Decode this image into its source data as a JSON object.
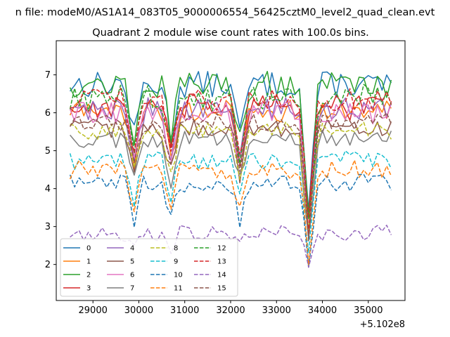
{
  "chart_data": {
    "type": "line",
    "suptitle": "n file: modeM0/AS1A14_083T05_9000006554_56425cztM0_level2_quad_clean.evt",
    "title": "Quadrant 2 module wise count rates with 100.0s bins.",
    "xlabel": "",
    "ylabel": "",
    "x_offset_label": "+5.102e8",
    "xlim": [
      28200,
      35800
    ],
    "ylim": [
      1.05,
      7.9
    ],
    "x_ticks": [
      29000,
      30000,
      31000,
      32000,
      33000,
      34000,
      35000
    ],
    "x_tick_labels": [
      "29000",
      "30000",
      "31000",
      "32000",
      "33000",
      "34000",
      "35000"
    ],
    "y_ticks": [
      2,
      3,
      4,
      5,
      6,
      7
    ],
    "y_tick_labels": [
      "2",
      "3",
      "4",
      "5",
      "6",
      "7"
    ],
    "x_start": 28500,
    "x_step": 100,
    "dip_centers": [
      29900,
      30700,
      32200,
      33700
    ],
    "legend_position": "lower-left",
    "series": [
      {
        "name": "0",
        "color": "#1f77b4",
        "dash": "solid",
        "base": 6.75,
        "noise": 0.35,
        "dip": 1.4
      },
      {
        "name": "1",
        "color": "#ff7f0e",
        "dash": "solid",
        "base": 6.05,
        "noise": 0.3,
        "dip": 1.3
      },
      {
        "name": "2",
        "color": "#2ca02c",
        "dash": "solid",
        "base": 6.75,
        "noise": 0.35,
        "dip": 1.4
      },
      {
        "name": "3",
        "color": "#d62728",
        "dash": "solid",
        "base": 6.15,
        "noise": 0.35,
        "dip": 1.3
      },
      {
        "name": "4",
        "color": "#9467bd",
        "dash": "solid",
        "base": 6.1,
        "noise": 0.3,
        "dip": 1.3
      },
      {
        "name": "5",
        "color": "#8c564b",
        "dash": "solid",
        "base": 5.6,
        "noise": 0.25,
        "dip": 1.2
      },
      {
        "name": "6",
        "color": "#e377c2",
        "dash": "solid",
        "base": 6.0,
        "noise": 0.3,
        "dip": 1.3
      },
      {
        "name": "7",
        "color": "#7f7f7f",
        "dash": "solid",
        "base": 5.3,
        "noise": 0.25,
        "dip": 1.1
      },
      {
        "name": "8",
        "color": "#bcbd22",
        "dash": "dashed",
        "base": 5.55,
        "noise": 0.25,
        "dip": 1.2
      },
      {
        "name": "9",
        "color": "#17becf",
        "dash": "dashed",
        "base": 4.75,
        "noise": 0.25,
        "dip": 1.0
      },
      {
        "name": "10",
        "color": "#1f77b4",
        "dash": "dashed",
        "base": 4.15,
        "noise": 0.25,
        "dip": 1.0
      },
      {
        "name": "11",
        "color": "#ff7f0e",
        "dash": "dashed",
        "base": 4.5,
        "noise": 0.25,
        "dip": 1.0
      },
      {
        "name": "12",
        "color": "#2ca02c",
        "dash": "dashed",
        "base": 6.4,
        "noise": 0.35,
        "dip": 1.4
      },
      {
        "name": "13",
        "color": "#d62728",
        "dash": "dashed",
        "base": 6.35,
        "noise": 0.3,
        "dip": 1.4
      },
      {
        "name": "14",
        "color": "#9467bd",
        "dash": "dashed",
        "base": 2.85,
        "noise": 0.22,
        "dip": 0.4
      },
      {
        "name": "15",
        "color": "#8c564b",
        "dash": "dashed",
        "base": 5.75,
        "noise": 0.25,
        "dip": 1.2
      }
    ]
  }
}
